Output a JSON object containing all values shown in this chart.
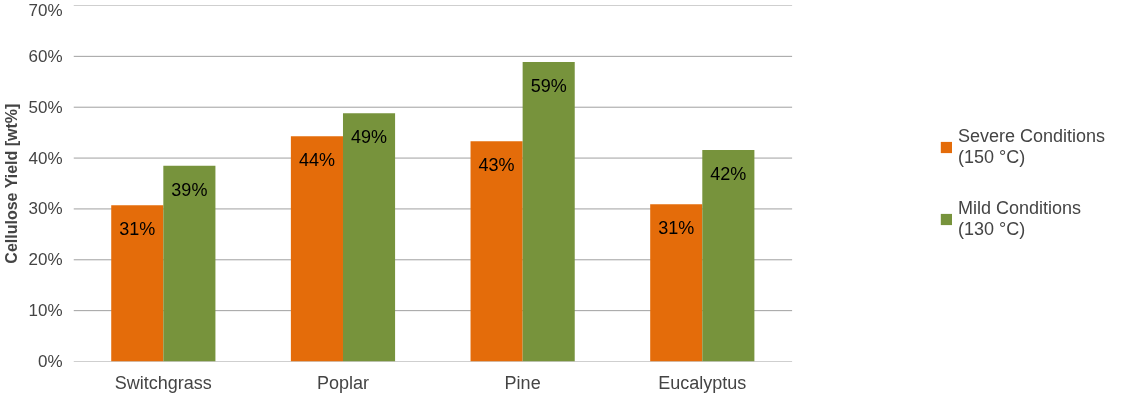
{
  "chart_data": {
    "type": "bar",
    "ylabel": "Cellulose Yield [wt%]",
    "categories": [
      "Switchgrass",
      "Poplar",
      "Pine",
      "Eucalyptus"
    ],
    "series": [
      {
        "name": "Severe Conditions\n(150 °C)",
        "color": "#e46c0a",
        "values": [
          30.7,
          44.3,
          43.3,
          30.9
        ],
        "value_labels": [
          "31%",
          "44%",
          "43%",
          "31%"
        ]
      },
      {
        "name": "Mild Conditions\n(130 °C)",
        "color": "#77933c",
        "values": [
          38.5,
          48.8,
          58.9,
          41.6
        ],
        "value_labels": [
          "39%",
          "49%",
          "59%",
          "42%"
        ]
      }
    ],
    "ylim": [
      0,
      70
    ],
    "yticks": [
      {
        "value": 0,
        "label": "0%"
      },
      {
        "value": 10,
        "label": "10%"
      },
      {
        "value": 20,
        "label": "20%"
      },
      {
        "value": 30,
        "label": "30%"
      },
      {
        "value": 40,
        "label": "40%"
      },
      {
        "value": 50,
        "label": "50%"
      },
      {
        "value": 60,
        "label": "60%"
      },
      {
        "value": 70,
        "label": "70%"
      }
    ],
    "grid": "y",
    "legend": "right"
  }
}
